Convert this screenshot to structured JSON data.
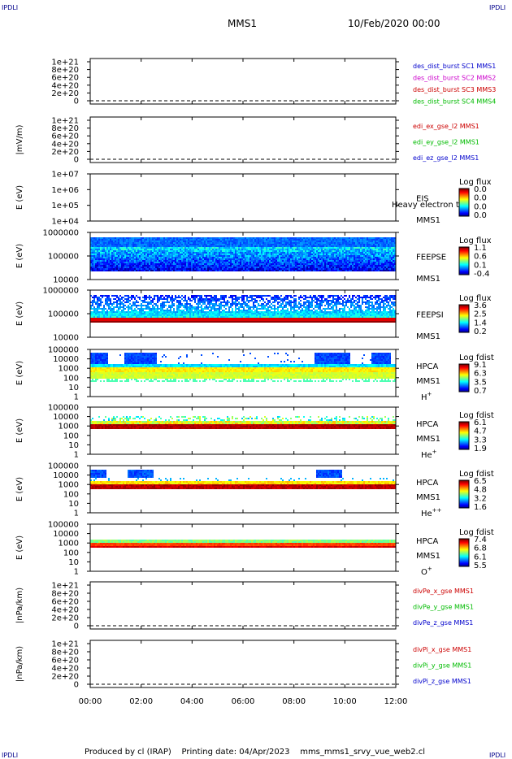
{
  "corner_label": "IPDLI",
  "title": "MMS1",
  "date": "10/Feb/2020 00:00",
  "footer": {
    "produced": "Produced by cl (IRAP)",
    "printing": "Printing date: 04/Apr/2023",
    "script": "mms_mms1_srvy_vue_web2.cl"
  },
  "colors": {
    "sc1": "#0000cc",
    "sc2": "#cc00cc",
    "sc3": "#cc0000",
    "sc4": "#00bb00",
    "x": "#cc0000",
    "y": "#00bb00",
    "z": "#0000cc"
  },
  "chart_data": [
    {
      "type": "line",
      "ylabel": "",
      "yticks": [
        "1e+21",
        "8e+20",
        "6e+20",
        "4e+20",
        "2e+20",
        "0"
      ],
      "series": [
        {
          "name": "des_dist_burst SC1 MMS1",
          "color": "#0000cc"
        },
        {
          "name": "des_dist_burst SC2 MMS2",
          "color": "#cc00cc"
        },
        {
          "name": "des_dist_burst SC3 MMS3",
          "color": "#cc0000"
        },
        {
          "name": "des_dist_burst SC4 MMS4",
          "color": "#00bb00"
        }
      ]
    },
    {
      "type": "line",
      "ylabel": "|mV/m)",
      "yticks": [
        "1e+21",
        "8e+20",
        "6e+20",
        "4e+20",
        "2e+20",
        "0"
      ],
      "series": [
        {
          "name": "edi_ex_gse_l2 MMS1",
          "color": "#cc0000"
        },
        {
          "name": "edi_ey_gse_l2 MMS1",
          "color": "#00bb00"
        },
        {
          "name": "edi_ez_gse_l2 MMS1",
          "color": "#0000cc"
        }
      ]
    },
    {
      "type": "heatmap",
      "ylabel": "E (eV)",
      "yticks": [
        "1e+07",
        "1e+06",
        "1e+05",
        "1e+04"
      ],
      "labels": [
        "EIS",
        "MMS1"
      ],
      "overlay": "Heavy electron to",
      "colorbar_title": "Log flux",
      "colorbar_ticks": [
        "0.0",
        "0.0",
        "0.0",
        "0.0"
      ]
    },
    {
      "type": "heatmap",
      "ylabel": "E (eV)",
      "yticks": [
        "1000000",
        "100000",
        "10000"
      ],
      "labels": [
        "FEEPSE",
        "MMS1"
      ],
      "colorbar_title": "Log flux",
      "colorbar_ticks": [
        "1.1",
        "0.6",
        "0.1",
        "-0.4"
      ]
    },
    {
      "type": "heatmap",
      "ylabel": "E (eV)",
      "yticks": [
        "1000000",
        "100000",
        "10000"
      ],
      "labels": [
        "FEEPSI",
        "MMS1"
      ],
      "colorbar_title": "Log flux",
      "colorbar_ticks": [
        "3.6",
        "2.5",
        "1.4",
        "0.2"
      ]
    },
    {
      "type": "heatmap",
      "ylabel": "E (eV)",
      "yticks": [
        "100000",
        "10000",
        "1000",
        "100",
        "10",
        "1"
      ],
      "labels": [
        "HPCA",
        "MMS1",
        "H+"
      ],
      "colorbar_title": "Log fdist",
      "colorbar_ticks": [
        "9.1",
        "6.3",
        "3.5",
        "0.7"
      ]
    },
    {
      "type": "heatmap",
      "ylabel": "E (eV)",
      "yticks": [
        "100000",
        "10000",
        "1000",
        "100",
        "10",
        "1"
      ],
      "labels": [
        "HPCA",
        "MMS1",
        "He+"
      ],
      "colorbar_title": "Log fdist",
      "colorbar_ticks": [
        "6.1",
        "4.7",
        "3.3",
        "1.9"
      ]
    },
    {
      "type": "heatmap",
      "ylabel": "E (eV)",
      "yticks": [
        "100000",
        "10000",
        "1000",
        "100",
        "10",
        "1"
      ],
      "labels": [
        "HPCA",
        "MMS1",
        "He++"
      ],
      "colorbar_title": "Log fdist",
      "colorbar_ticks": [
        "6.5",
        "4.8",
        "3.2",
        "1.6"
      ]
    },
    {
      "type": "heatmap",
      "ylabel": "E (eV)",
      "yticks": [
        "100000",
        "10000",
        "1000",
        "100",
        "10",
        "1"
      ],
      "labels": [
        "HPCA",
        "MMS1",
        "O+"
      ],
      "colorbar_title": "Log fdist",
      "colorbar_ticks": [
        "7.4",
        "6.8",
        "6.1",
        "5.5"
      ]
    },
    {
      "type": "line",
      "ylabel": "|nPa/km)",
      "yticks": [
        "1e+21",
        "8e+20",
        "6e+20",
        "4e+20",
        "2e+20",
        "0"
      ],
      "series": [
        {
          "name": "divPe_x_gse MMS1",
          "color": "#cc0000"
        },
        {
          "name": "divPe_y_gse MMS1",
          "color": "#00bb00"
        },
        {
          "name": "divPe_z_gse MMS1",
          "color": "#0000cc"
        }
      ]
    },
    {
      "type": "line",
      "ylabel": "|nPa/km)",
      "yticks": [
        "1e+21",
        "8e+20",
        "6e+20",
        "4e+20",
        "2e+20",
        "0"
      ],
      "series": [
        {
          "name": "divPi_x_gse MMS1",
          "color": "#cc0000"
        },
        {
          "name": "divPi_y_gse MMS1",
          "color": "#00bb00"
        },
        {
          "name": "divPi_z_gse MMS1",
          "color": "#0000cc"
        }
      ]
    }
  ],
  "xaxis": {
    "ticks": [
      "00:00",
      "02:00",
      "04:00",
      "06:00",
      "08:00",
      "10:00",
      "12:00"
    ]
  }
}
